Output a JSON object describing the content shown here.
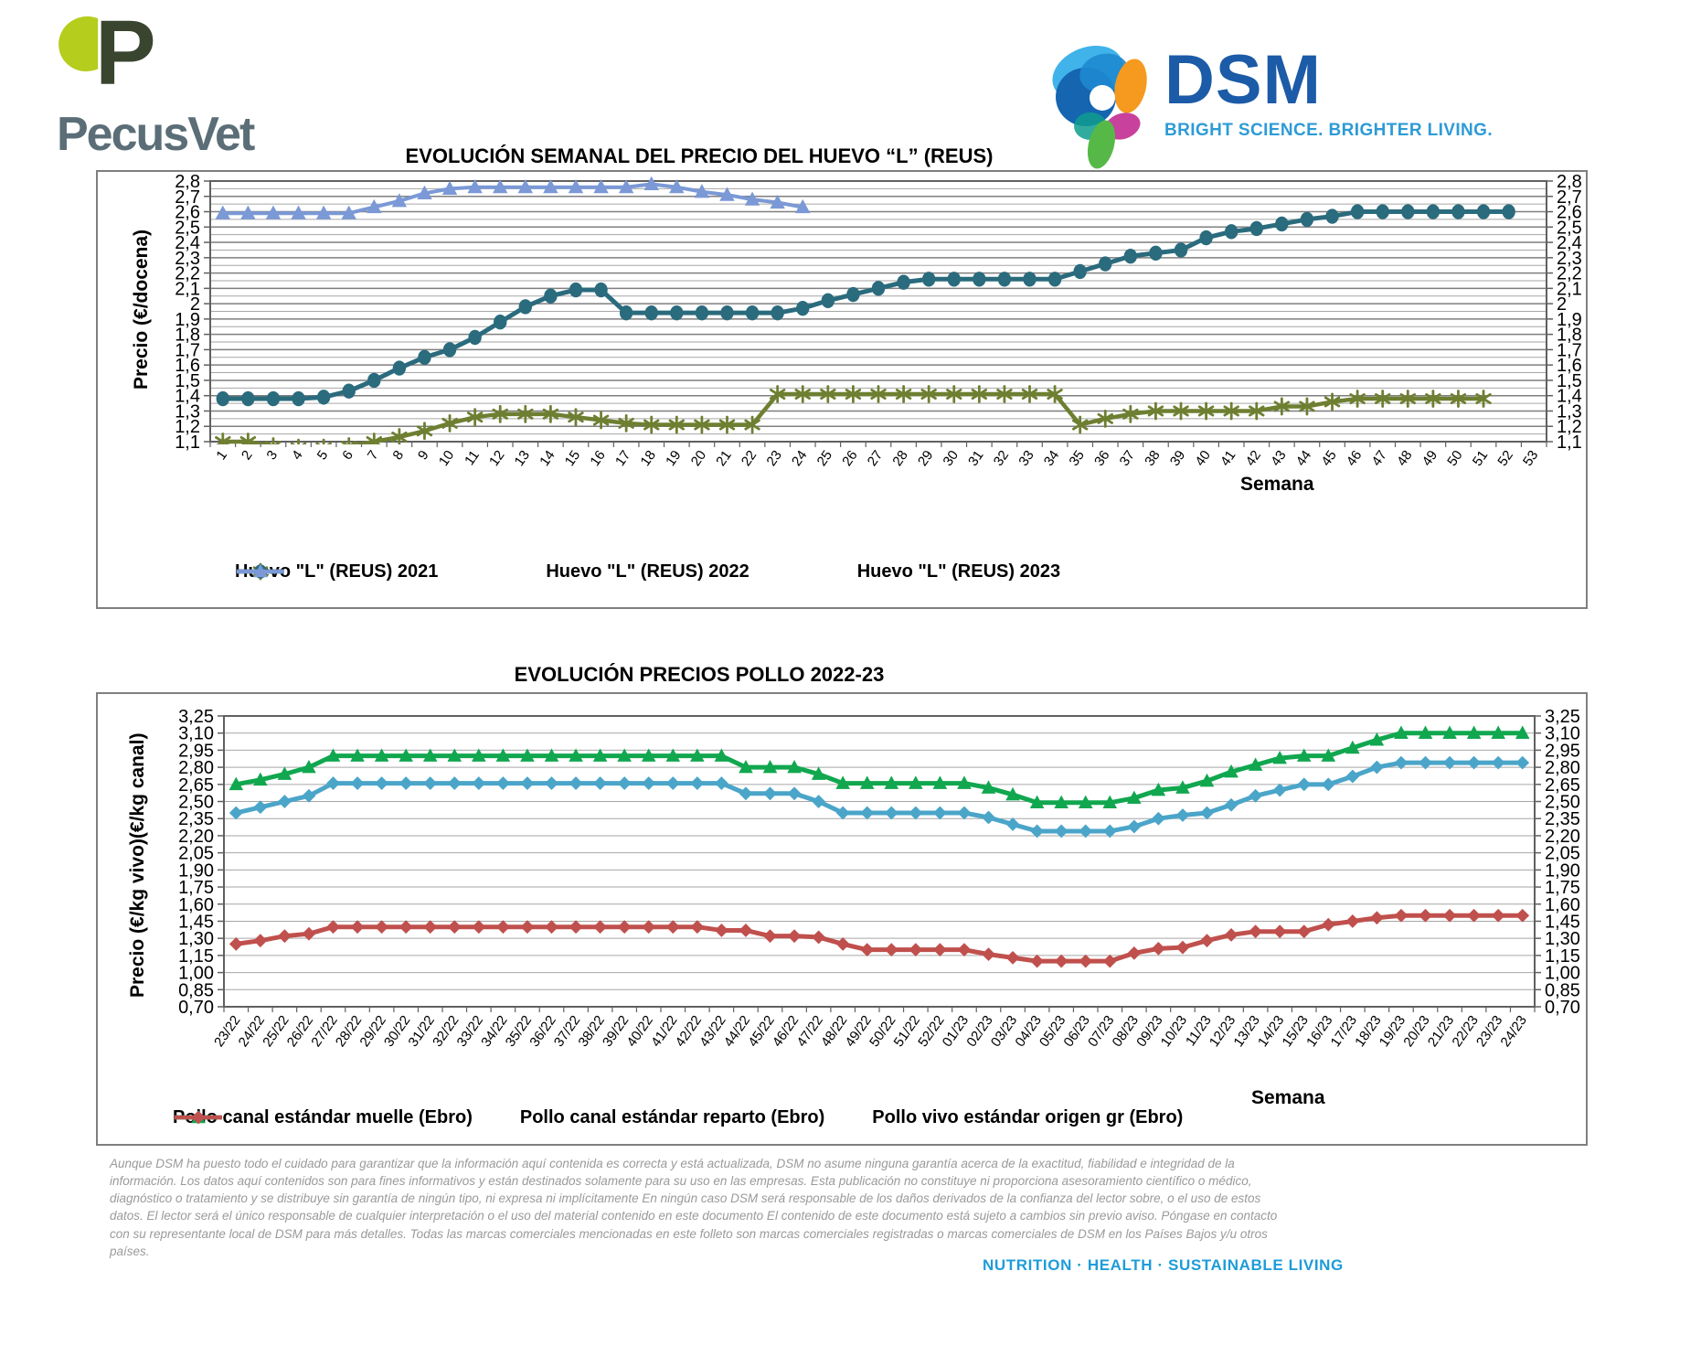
{
  "logos": {
    "pecusvet_text": "PecusVet",
    "dsm_text": "DSM",
    "dsm_tagline": "BRIGHT SCIENCE. BRIGHTER LIVING."
  },
  "footer": {
    "disclaimer": "Aunque DSM ha puesto todo el cuidado para garantizar que la información aquí contenida es correcta y está actualizada, DSM no asume ninguna garantía acerca de la exactitud, fiabilidad e integridad de la información. Los datos aquí contenidos son para fines informativos y están destinados solamente para su uso en las empresas. Esta publicación no constituye ni proporciona asesoramiento científico o médico, diagnóstico o tratamiento y se distribuye sin garantía de ningún tipo, ni expresa ni implícitamente En ningún caso DSM será responsable de los daños derivados de la confianza del lector sobre, o el uso de estos datos. El lector será el único responsable de cualquier interpretación o el uso del material contenido en este documento El contenido de este documento está sujeto a cambios sin previo aviso. Póngase en contacto con su representante local de DSM para más detalles. Todas las marcas comerciales mencionadas en este folleto son marcas comerciales registradas o marcas comerciales de DSM en los Países Bajos y/u otros países.",
    "motto": "NUTRITION  ·  HEALTH  ·  SUSTAINABLE LIVING"
  },
  "colors": {
    "dsm_blue": "#1b5ba7",
    "dsm_cyan": "#2d9bd6",
    "pecusvet_gray": "#5b6e77",
    "pecusvet_lime": "#b5cd1d",
    "grid_major": "#7f7f7f",
    "grid_minor": "#a6a6a6"
  },
  "chart_data": [
    {
      "type": "line",
      "name": "egg-price-chart",
      "title": "EVOLUCIÓN SEMANAL DEL PRECIO DEL HUEVO “L” (REUS)",
      "ylabel": "Precio (€/docena)",
      "xlabel": "Semana",
      "ylim": [
        1.1,
        2.8
      ],
      "ytick_step": 0.1,
      "grid_step": 0.05,
      "grid": true,
      "legend_position": "bottom",
      "xlabel_size": 15,
      "ytick_labels": [
        "2,8",
        "2,7",
        "2,6",
        "2,5",
        "2,4",
        "2,3",
        "2,2",
        "2,1",
        "2",
        "1,9",
        "1,8",
        "1,7",
        "1,6",
        "1,5",
        "1,4",
        "1,3",
        "1,2",
        "1,1"
      ],
      "x_categories": [
        "1",
        "2",
        "3",
        "4",
        "5",
        "6",
        "7",
        "8",
        "9",
        "10",
        "11",
        "12",
        "13",
        "14",
        "15",
        "16",
        "17",
        "18",
        "19",
        "20",
        "21",
        "22",
        "23",
        "24",
        "25",
        "26",
        "27",
        "28",
        "29",
        "30",
        "31",
        "32",
        "33",
        "34",
        "35",
        "36",
        "37",
        "38",
        "39",
        "40",
        "41",
        "42",
        "43",
        "44",
        "45",
        "46",
        "47",
        "48",
        "49",
        "50",
        "51",
        "52",
        "53"
      ],
      "series": [
        {
          "name": "Huevo \"L\" (REUS) 2021",
          "color": "#6e7f31",
          "marker": "star",
          "lw": 4.5,
          "values": [
            1.1,
            1.1,
            1.07,
            1.06,
            1.06,
            1.07,
            1.1,
            1.13,
            1.17,
            1.22,
            1.26,
            1.28,
            1.28,
            1.28,
            1.26,
            1.24,
            1.22,
            1.21,
            1.21,
            1.21,
            1.21,
            1.21,
            1.41,
            1.41,
            1.41,
            1.41,
            1.41,
            1.41,
            1.41,
            1.41,
            1.41,
            1.41,
            1.41,
            1.41,
            1.21,
            1.25,
            1.28,
            1.3,
            1.3,
            1.3,
            1.3,
            1.3,
            1.33,
            1.33,
            1.36,
            1.38,
            1.38,
            1.38,
            1.38,
            1.38,
            1.38,
            null,
            null
          ]
        },
        {
          "name": "Huevo \"L\" (REUS) 2022",
          "color": "#2a6b7d",
          "marker": "circle",
          "lw": 5,
          "values": [
            1.38,
            1.38,
            1.38,
            1.38,
            1.39,
            1.43,
            1.5,
            1.58,
            1.65,
            1.7,
            1.78,
            1.88,
            1.98,
            2.05,
            2.09,
            2.09,
            1.94,
            1.94,
            1.94,
            1.94,
            1.94,
            1.94,
            1.94,
            1.97,
            2.02,
            2.06,
            2.1,
            2.14,
            2.16,
            2.16,
            2.16,
            2.16,
            2.16,
            2.16,
            2.21,
            2.26,
            2.31,
            2.33,
            2.35,
            2.43,
            2.47,
            2.49,
            2.52,
            2.55,
            2.57,
            2.6,
            2.6,
            2.6,
            2.6,
            2.6,
            2.6,
            2.6,
            null
          ]
        },
        {
          "name": "Huevo \"L\" (REUS) 2023",
          "color": "#7b99d6",
          "marker": "triangle",
          "lw": 4,
          "values": [
            2.59,
            2.59,
            2.59,
            2.59,
            2.59,
            2.59,
            2.63,
            2.67,
            2.72,
            2.75,
            2.76,
            2.76,
            2.76,
            2.76,
            2.76,
            2.76,
            2.76,
            2.78,
            2.76,
            2.73,
            2.71,
            2.68,
            2.66,
            2.63,
            null,
            null,
            null,
            null,
            null,
            null,
            null,
            null,
            null,
            null,
            null,
            null,
            null,
            null,
            null,
            null,
            null,
            null,
            null,
            null,
            null,
            null,
            null,
            null,
            null,
            null,
            null,
            null,
            null
          ]
        }
      ]
    },
    {
      "type": "line",
      "name": "chicken-price-chart",
      "title": "EVOLUCIÓN PRECIOS POLLO 2022-23",
      "ylabel": "Precio (€/kg vivo)(€/kg canal)",
      "xlabel": "Semana",
      "ylim": [
        0.7,
        3.25
      ],
      "ytick_step": 0.15,
      "grid_step": 0.15,
      "grid": true,
      "legend_position": "bottom",
      "xlabel_size": 15,
      "ytick_labels": [
        "3,25",
        "3,10",
        "2,95",
        "2,80",
        "2,65",
        "2,50",
        "2,35",
        "2,20",
        "2,05",
        "1,90",
        "1,75",
        "1,60",
        "1,45",
        "1,30",
        "1,15",
        "1,00",
        "0,85",
        "0,70"
      ],
      "x_categories": [
        "23/22",
        "24/22",
        "25/22",
        "26/22",
        "27/22",
        "28/22",
        "29/22",
        "30/22",
        "31/22",
        "32/22",
        "33/22",
        "34/22",
        "35/22",
        "36/22",
        "37/22",
        "38/22",
        "39/22",
        "40/22",
        "41/22",
        "42/22",
        "43/22",
        "44/22",
        "45/22",
        "46/22",
        "47/22",
        "48/22",
        "49/22",
        "50/22",
        "51/22",
        "52/22",
        "01/23",
        "02/23",
        "03/23",
        "04/23",
        "05/23",
        "06/23",
        "07/23",
        "08/23",
        "09/23",
        "10/23",
        "11/23",
        "12/23",
        "13/23",
        "14/23",
        "15/23",
        "16/23",
        "17/23",
        "18/23",
        "19/23",
        "20/23",
        "21/23",
        "22/23",
        "23/23",
        "24/23"
      ],
      "series": [
        {
          "name": "Pollo canal estándar muelle (Ebro)",
          "color": "#4aa5c9",
          "marker": "diamond",
          "lw": 5,
          "values": [
            2.4,
            2.45,
            2.5,
            2.55,
            2.66,
            2.66,
            2.66,
            2.66,
            2.66,
            2.66,
            2.66,
            2.66,
            2.66,
            2.66,
            2.66,
            2.66,
            2.66,
            2.66,
            2.66,
            2.66,
            2.66,
            2.57,
            2.57,
            2.57,
            2.5,
            2.4,
            2.4,
            2.4,
            2.4,
            2.4,
            2.4,
            2.36,
            2.3,
            2.24,
            2.24,
            2.24,
            2.24,
            2.28,
            2.35,
            2.38,
            2.4,
            2.47,
            2.55,
            2.6,
            2.65,
            2.65,
            2.72,
            2.8,
            2.84,
            2.84,
            2.84,
            2.84,
            2.84,
            2.84
          ]
        },
        {
          "name": "Pollo canal estándar reparto (Ebro)",
          "color": "#10a74f",
          "marker": "triangle",
          "lw": 5,
          "values": [
            2.65,
            2.69,
            2.74,
            2.8,
            2.9,
            2.9,
            2.9,
            2.9,
            2.9,
            2.9,
            2.9,
            2.9,
            2.9,
            2.9,
            2.9,
            2.9,
            2.9,
            2.9,
            2.9,
            2.9,
            2.9,
            2.8,
            2.8,
            2.8,
            2.74,
            2.66,
            2.66,
            2.66,
            2.66,
            2.66,
            2.66,
            2.62,
            2.56,
            2.49,
            2.49,
            2.49,
            2.49,
            2.53,
            2.6,
            2.62,
            2.68,
            2.76,
            2.82,
            2.88,
            2.9,
            2.9,
            2.97,
            3.04,
            3.1,
            3.1,
            3.1,
            3.1,
            3.1,
            3.1
          ]
        },
        {
          "name": "Pollo vivo estándar origen gr (Ebro)",
          "color": "#c0504d",
          "marker": "diamond",
          "lw": 5,
          "values": [
            1.25,
            1.28,
            1.32,
            1.34,
            1.4,
            1.4,
            1.4,
            1.4,
            1.4,
            1.4,
            1.4,
            1.4,
            1.4,
            1.4,
            1.4,
            1.4,
            1.4,
            1.4,
            1.4,
            1.4,
            1.37,
            1.37,
            1.32,
            1.32,
            1.31,
            1.25,
            1.2,
            1.2,
            1.2,
            1.2,
            1.2,
            1.16,
            1.13,
            1.1,
            1.1,
            1.1,
            1.1,
            1.17,
            1.21,
            1.22,
            1.28,
            1.33,
            1.36,
            1.36,
            1.36,
            1.42,
            1.45,
            1.48,
            1.5,
            1.5,
            1.5,
            1.5,
            1.5,
            1.5
          ]
        }
      ]
    }
  ]
}
